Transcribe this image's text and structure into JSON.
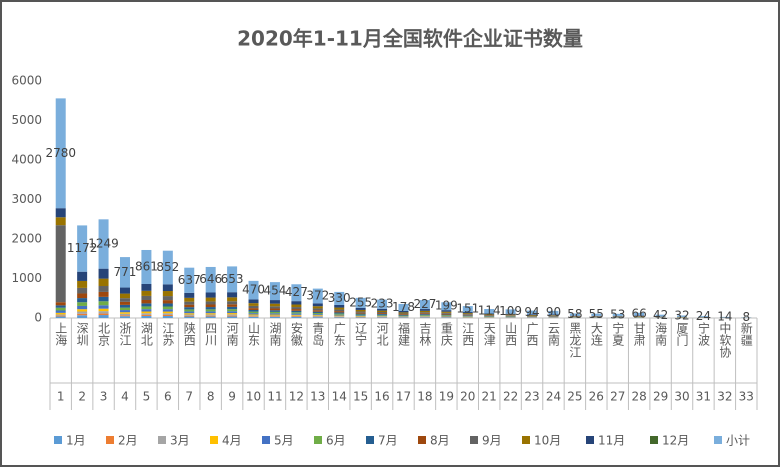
{
  "chart_data": {
    "type": "stacked_bar",
    "title": "2020年1-11月全国软件企业证书数量",
    "categories": [
      "上海",
      "深圳",
      "北京",
      "浙江",
      "湖北",
      "江苏",
      "陕西",
      "四川",
      "河南",
      "山东",
      "湖南",
      "安徽",
      "青岛",
      "广东",
      "辽宁",
      "河北",
      "福建",
      "吉林",
      "重庆",
      "江西",
      "天津",
      "山西",
      "广西",
      "云南",
      "黑龙江",
      "大连",
      "宁夏",
      "甘肃",
      "海南",
      "厦门",
      "宁波",
      "中软协",
      "新疆"
    ],
    "category_numbers": [
      1,
      2,
      3,
      4,
      5,
      6,
      7,
      8,
      9,
      10,
      11,
      12,
      13,
      14,
      15,
      16,
      17,
      18,
      19,
      20,
      21,
      22,
      23,
      24,
      25,
      26,
      27,
      28,
      29,
      30,
      31,
      32,
      33
    ],
    "ylim": [
      0,
      6000
    ],
    "yticks": [
      0,
      1000,
      2000,
      3000,
      4000,
      5000,
      6000
    ],
    "legend": "bottom",
    "label_series": 12,
    "series": [
      {
        "name": "1月",
        "color": "#5b9bd5",
        "values": [
          40,
          70,
          75,
          46,
          52,
          51,
          38,
          39,
          39,
          28,
          27,
          26,
          22,
          20,
          15,
          14,
          11,
          14,
          12,
          9,
          7,
          7,
          6,
          5,
          3,
          3,
          3,
          4,
          3,
          2,
          1,
          1,
          0
        ]
      },
      {
        "name": "2月",
        "color": "#ed7d31",
        "values": [
          20,
          35,
          37,
          23,
          26,
          26,
          19,
          19,
          20,
          14,
          14,
          13,
          11,
          10,
          8,
          7,
          5,
          7,
          6,
          5,
          3,
          3,
          3,
          3,
          2,
          2,
          2,
          2,
          1,
          1,
          1,
          0,
          0
        ]
      },
      {
        "name": "3月",
        "color": "#a5a5a5",
        "values": [
          30,
          59,
          62,
          39,
          43,
          43,
          32,
          32,
          33,
          24,
          23,
          21,
          19,
          16,
          13,
          12,
          9,
          11,
          10,
          8,
          6,
          5,
          5,
          5,
          3,
          3,
          3,
          3,
          2,
          2,
          1,
          1,
          0
        ]
      },
      {
        "name": "4月",
        "color": "#ffc000",
        "values": [
          40,
          59,
          62,
          39,
          43,
          43,
          32,
          32,
          33,
          24,
          23,
          21,
          19,
          16,
          13,
          12,
          9,
          11,
          10,
          8,
          6,
          5,
          5,
          5,
          3,
          3,
          3,
          3,
          2,
          2,
          1,
          1,
          1
        ]
      },
      {
        "name": "5月",
        "color": "#4472c4",
        "values": [
          60,
          82,
          87,
          54,
          60,
          60,
          45,
          45,
          46,
          33,
          32,
          30,
          26,
          23,
          18,
          16,
          12,
          16,
          14,
          11,
          8,
          8,
          7,
          6,
          4,
          4,
          4,
          5,
          3,
          2,
          2,
          1,
          1
        ]
      },
      {
        "name": "6月",
        "color": "#70ad47",
        "values": [
          70,
          94,
          100,
          62,
          69,
          68,
          51,
          52,
          52,
          38,
          36,
          34,
          30,
          26,
          20,
          19,
          14,
          18,
          16,
          12,
          9,
          9,
          8,
          7,
          5,
          4,
          4,
          5,
          3,
          3,
          2,
          1,
          1
        ]
      },
      {
        "name": "7月",
        "color": "#255e91",
        "values": [
          60,
          105,
          112,
          69,
          77,
          77,
          57,
          58,
          59,
          42,
          41,
          38,
          33,
          30,
          23,
          21,
          16,
          20,
          18,
          14,
          10,
          10,
          8,
          8,
          5,
          5,
          5,
          6,
          4,
          3,
          2,
          1,
          1
        ]
      },
      {
        "name": "8月",
        "color": "#9e480e",
        "values": [
          80,
          117,
          125,
          77,
          86,
          85,
          64,
          65,
          65,
          47,
          45,
          43,
          37,
          33,
          25,
          23,
          18,
          23,
          20,
          15,
          11,
          11,
          9,
          9,
          6,
          6,
          5,
          7,
          4,
          3,
          2,
          1,
          1
        ]
      },
      {
        "name": "9月",
        "color": "#636363",
        "values": [
          1950,
          141,
          150,
          93,
          103,
          102,
          76,
          78,
          78,
          56,
          54,
          51,
          45,
          40,
          31,
          28,
          21,
          27,
          24,
          18,
          14,
          13,
          11,
          11,
          7,
          7,
          6,
          8,
          5,
          4,
          3,
          2,
          1
        ]
      },
      {
        "name": "10月",
        "color": "#997300",
        "values": [
          200,
          176,
          187,
          116,
          129,
          128,
          96,
          97,
          98,
          70,
          68,
          64,
          56,
          50,
          38,
          35,
          27,
          34,
          30,
          23,
          17,
          16,
          14,
          13,
          9,
          8,
          8,
          10,
          6,
          5,
          4,
          2,
          1
        ]
      },
      {
        "name": "11月",
        "color": "#264478",
        "values": [
          230,
          234,
          252,
          153,
          173,
          169,
          127,
          129,
          130,
          94,
          91,
          86,
          74,
          66,
          51,
          46,
          36,
          46,
          39,
          28,
          23,
          22,
          18,
          18,
          11,
          10,
          10,
          13,
          9,
          5,
          5,
          3,
          1
        ]
      },
      {
        "name": "12月",
        "color": "#43682b",
        "values": [
          0,
          0,
          0,
          0,
          0,
          0,
          0,
          0,
          0,
          0,
          0,
          0,
          0,
          0,
          0,
          0,
          0,
          0,
          0,
          0,
          0,
          0,
          0,
          0,
          0,
          0,
          0,
          0,
          0,
          0,
          0,
          0,
          0
        ]
      },
      {
        "name": "小计",
        "color": "#7aaedc",
        "values": [
          2780,
          1172,
          1249,
          771,
          861,
          852,
          637,
          646,
          653,
          470,
          454,
          427,
          372,
          330,
          255,
          233,
          178,
          227,
          199,
          151,
          114,
          109,
          94,
          90,
          58,
          55,
          53,
          66,
          42,
          32,
          24,
          14,
          8
        ]
      }
    ]
  }
}
